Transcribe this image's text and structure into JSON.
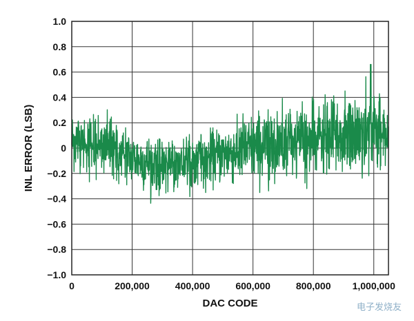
{
  "chart_data": {
    "type": "line",
    "xlabel": "DAC CODE",
    "ylabel": "INL ERROR (LSB)",
    "xlim": [
      0,
      1048575
    ],
    "ylim": [
      -1.0,
      1.0
    ],
    "x_ticks": [
      0,
      200000,
      400000,
      600000,
      800000,
      1000000
    ],
    "x_tick_labels": [
      "0",
      "200,000",
      "400,000",
      "600,000",
      "800,000",
      "1,000,000"
    ],
    "y_ticks": [
      1.0,
      0.8,
      0.6,
      0.4,
      0.2,
      0,
      -0.2,
      -0.4,
      -0.6,
      -0.8,
      -1.0
    ],
    "y_tick_labels": [
      "1.0",
      "0.8",
      "0.6",
      "0.4",
      "0.2",
      "0",
      "−0.2",
      "−0.4",
      "−0.6",
      "−0.8",
      "−1.0"
    ],
    "grid": true,
    "series_color": "#1a8a4a",
    "envelope": {
      "x": [
        0,
        50000,
        100000,
        150000,
        200000,
        250000,
        300000,
        350000,
        400000,
        450000,
        500000,
        550000,
        600000,
        650000,
        700000,
        750000,
        800000,
        850000,
        900000,
        950000,
        1000000,
        1048575
      ],
      "mean": [
        0.06,
        0.05,
        0.02,
        -0.03,
        -0.08,
        -0.11,
        -0.13,
        -0.12,
        -0.1,
        -0.08,
        -0.05,
        -0.02,
        0.0,
        0.02,
        0.03,
        0.05,
        0.06,
        0.08,
        0.09,
        0.11,
        0.12,
        0.12
      ],
      "min": [
        -0.18,
        -0.26,
        -0.3,
        -0.34,
        -0.38,
        -0.46,
        -0.46,
        -0.42,
        -0.38,
        -0.36,
        -0.38,
        -0.4,
        -0.42,
        -0.44,
        -0.4,
        -0.34,
        -0.34,
        -0.28,
        -0.28,
        -0.26,
        -0.3,
        -0.32
      ],
      "max": [
        0.46,
        0.46,
        0.36,
        0.22,
        0.16,
        0.14,
        0.06,
        0.08,
        0.12,
        0.18,
        0.22,
        0.28,
        0.3,
        0.34,
        0.4,
        0.4,
        0.42,
        0.46,
        0.48,
        0.66,
        0.56,
        0.42
      ]
    },
    "peak": {
      "x": 990000,
      "y": 0.66
    }
  },
  "watermark": "电子发烧友"
}
